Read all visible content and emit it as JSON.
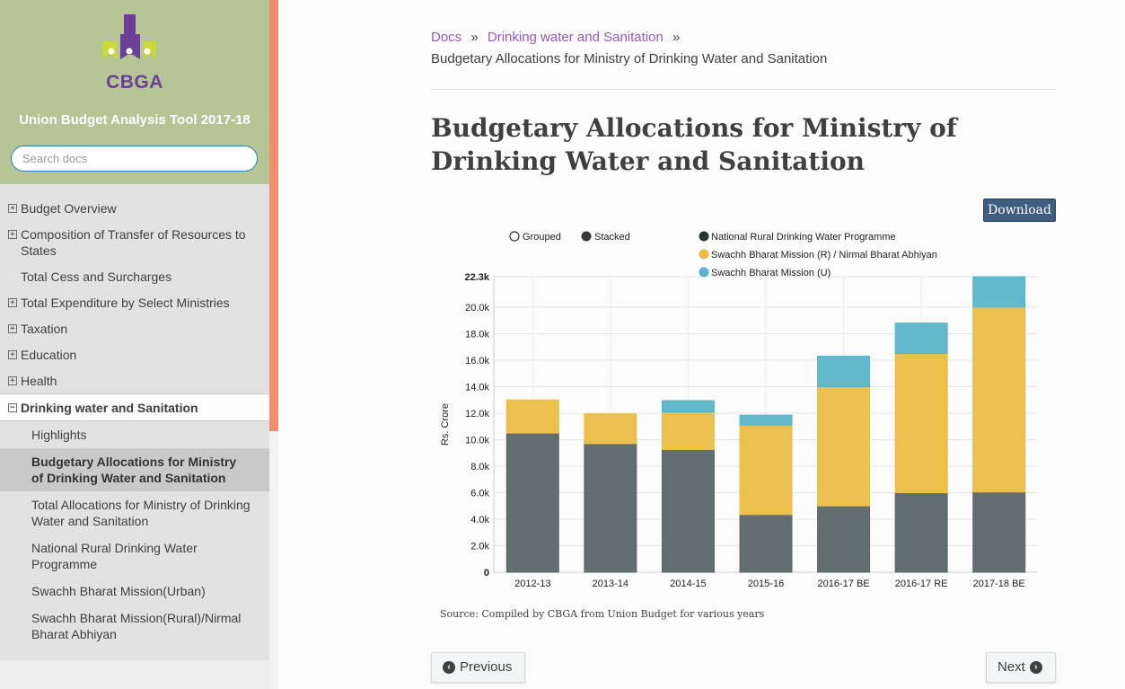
{
  "sidebar": {
    "logo_text": "CBGA",
    "project_title": "Union Budget Analysis Tool 2017-18",
    "search_placeholder": "Search docs",
    "items": [
      {
        "label": "Budget Overview",
        "expandable": true
      },
      {
        "label": "Composition of Transfer of Resources to States",
        "expandable": true
      },
      {
        "label": "Total Cess and Surcharges",
        "expandable": false
      },
      {
        "label": "Total Expenditure by Select Ministries",
        "expandable": true
      },
      {
        "label": "Taxation",
        "expandable": true
      },
      {
        "label": "Education",
        "expandable": true
      },
      {
        "label": "Health",
        "expandable": true
      },
      {
        "label": "Drinking water and Sanitation",
        "expandable": true,
        "expanded": true
      }
    ],
    "subitems": [
      {
        "label": "Highlights"
      },
      {
        "label": "Budgetary Allocations for Ministry of Drinking Water and Sanitation",
        "active": true
      },
      {
        "label": "Total Allocations for Ministry of Drinking Water and Sanitation"
      },
      {
        "label": "National Rural Drinking Water Programme"
      },
      {
        "label": "Swachh Bharat Mission(Urban)"
      },
      {
        "label": "Swachh Bharat Mission(Rural)/Nirmal Bharat Abhiyan"
      }
    ]
  },
  "breadcrumb": {
    "docs": "Docs",
    "sep": "»",
    "parent": "Drinking water and Sanitation",
    "current": "Budgetary Allocations for Ministry of Drinking Water and Sanitation"
  },
  "page_title": "Budgetary Allocations for Ministry of Drinking Water and Sanitation",
  "download_label": "Download",
  "source_text": "Source: Compiled by CBGA from Union Budget for various years",
  "pager": {
    "previous": "Previous",
    "next": "Next"
  },
  "colors": {
    "series1": "#5b6669",
    "series2": "#ebbd45",
    "series3": "#5ab5c8",
    "link": "#9b59b6",
    "sidebar_top": "#b6c596",
    "scroll_thumb": "#ef8f6c",
    "download": "#3f5d7e"
  },
  "chart_data": {
    "type": "bar",
    "stacked": true,
    "mode_options": [
      "Grouped",
      "Stacked"
    ],
    "selected_mode": "Stacked",
    "categories": [
      "2012-13",
      "2013-14",
      "2014-15",
      "2015-16",
      "2016-17 BE",
      "2016-17 RE",
      "2017-18 BE"
    ],
    "series": [
      {
        "name": "National Rural Drinking Water Programme",
        "values": [
          10500,
          9700,
          9250,
          4350,
          5000,
          6000,
          6050
        ]
      },
      {
        "name": "Swachh Bharat Mission (R) / Nirmal Bharat Abhiyan",
        "values": [
          2500,
          2250,
          2850,
          6750,
          9000,
          10500,
          13950
        ]
      },
      {
        "name": "Swachh Bharat Mission (U)",
        "values": [
          0,
          0,
          850,
          750,
          2300,
          2300,
          2300
        ]
      }
    ],
    "ylabel": "Rs. Crore",
    "ylim": [
      0,
      22300
    ],
    "yticks": [
      "0",
      "2.0k",
      "4.0k",
      "6.0k",
      "8.0k",
      "10.0k",
      "12.0k",
      "14.0k",
      "16.0k",
      "18.0k",
      "20.0k",
      "22.3k"
    ],
    "grid": true,
    "legend_position": "top"
  }
}
